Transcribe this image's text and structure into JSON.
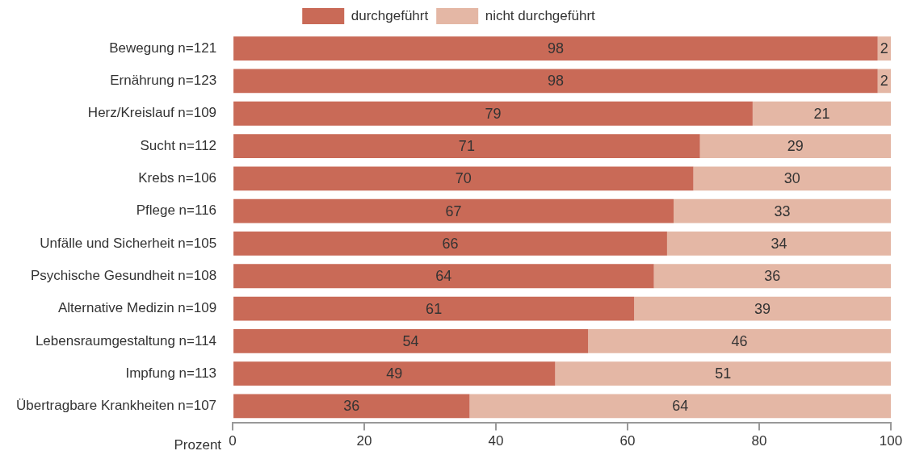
{
  "chart_data": {
    "type": "bar",
    "orientation": "horizontal",
    "stacked": true,
    "xlabel": "Prozent",
    "categories": [
      "Bewegung n=121",
      "Ernährung n=123",
      "Herz/Kreislauf n=109",
      "Sucht n=112",
      "Krebs n=106",
      "Pflege n=116",
      "Unfälle und Sicherheit n=105",
      "Psychische Gesundheit n=108",
      "Alternative Medizin n=109",
      "Lebensraumgestaltung n=114",
      "Impfung n=113",
      "Übertragbare Krankheiten n=107"
    ],
    "series": [
      {
        "name": "durchgeführt",
        "color": "#c96a57",
        "values": [
          98,
          98,
          79,
          71,
          70,
          67,
          66,
          64,
          61,
          54,
          49,
          36
        ]
      },
      {
        "name": "nicht durchgeführt",
        "color": "#e4b7a5",
        "values": [
          2,
          2,
          21,
          29,
          30,
          33,
          34,
          36,
          39,
          46,
          51,
          64
        ]
      }
    ],
    "xlim": [
      0,
      100
    ],
    "xticks": [
      0,
      20,
      40,
      60,
      80,
      100
    ],
    "grid": false,
    "legend": "top",
    "data_labels": true
  }
}
